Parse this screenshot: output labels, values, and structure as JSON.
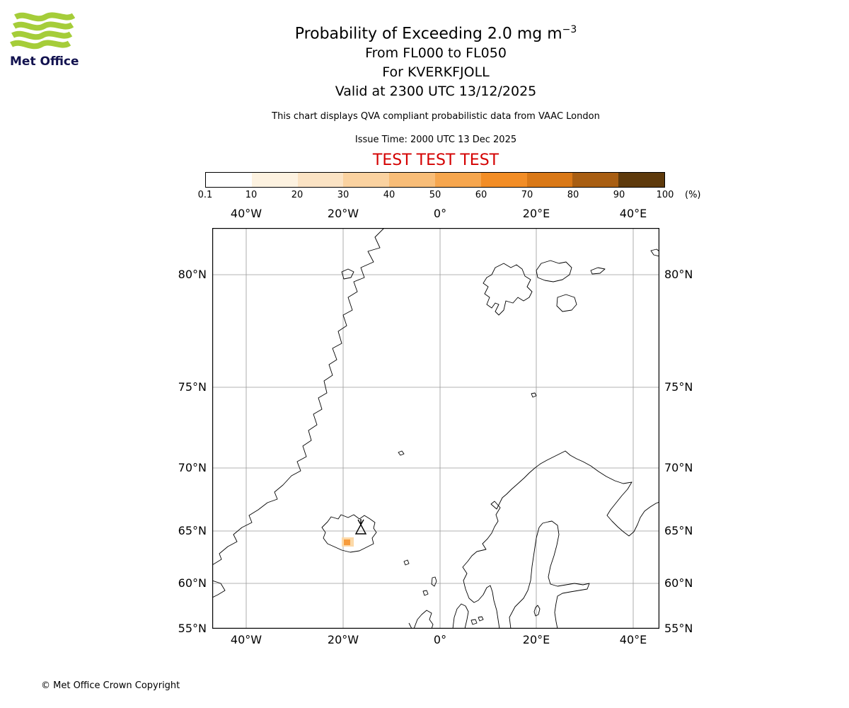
{
  "logo": {
    "text": "Met Office",
    "wave_color": "#a5cd39",
    "text_color": "#12124f"
  },
  "header": {
    "title_main": "Probability of Exceeding 2.0 mg m",
    "title_sup": "−3",
    "line_flight_levels": "From FL000 to FL050",
    "line_volcano": "For KVERKFJOLL",
    "line_valid": "Valid at 2300 UTC 13/12/2025",
    "note": "This chart displays QVA compliant probabilistic data from VAAC London",
    "issue": "Issue Time: 2000 UTC 13 Dec 2025",
    "test_banner": "TEST TEST TEST",
    "test_color": "#d40000"
  },
  "colorbar": {
    "ticks": [
      "0.1",
      "10",
      "20",
      "30",
      "40",
      "50",
      "60",
      "70",
      "80",
      "90",
      "100"
    ],
    "unit": "(%)",
    "colors": [
      "#ffffff",
      "#fdf2e0",
      "#fbe3c4",
      "#fad2a0",
      "#f8bd78",
      "#f6a64e",
      "#f28d26",
      "#d97817",
      "#a85e12",
      "#5e3a0c"
    ]
  },
  "map": {
    "lon_labels": [
      "40°W",
      "20°W",
      "0°",
      "20°E",
      "40°E"
    ],
    "lat_labels": [
      "80°N",
      "75°N",
      "70°N",
      "65°N",
      "60°N",
      "55°N"
    ],
    "ash_patch_outer_color": "#fcd9a8",
    "ash_patch_inner_color": "#f79c3d"
  },
  "footer": {
    "copyright": "© Met Office Crown Copyright"
  }
}
